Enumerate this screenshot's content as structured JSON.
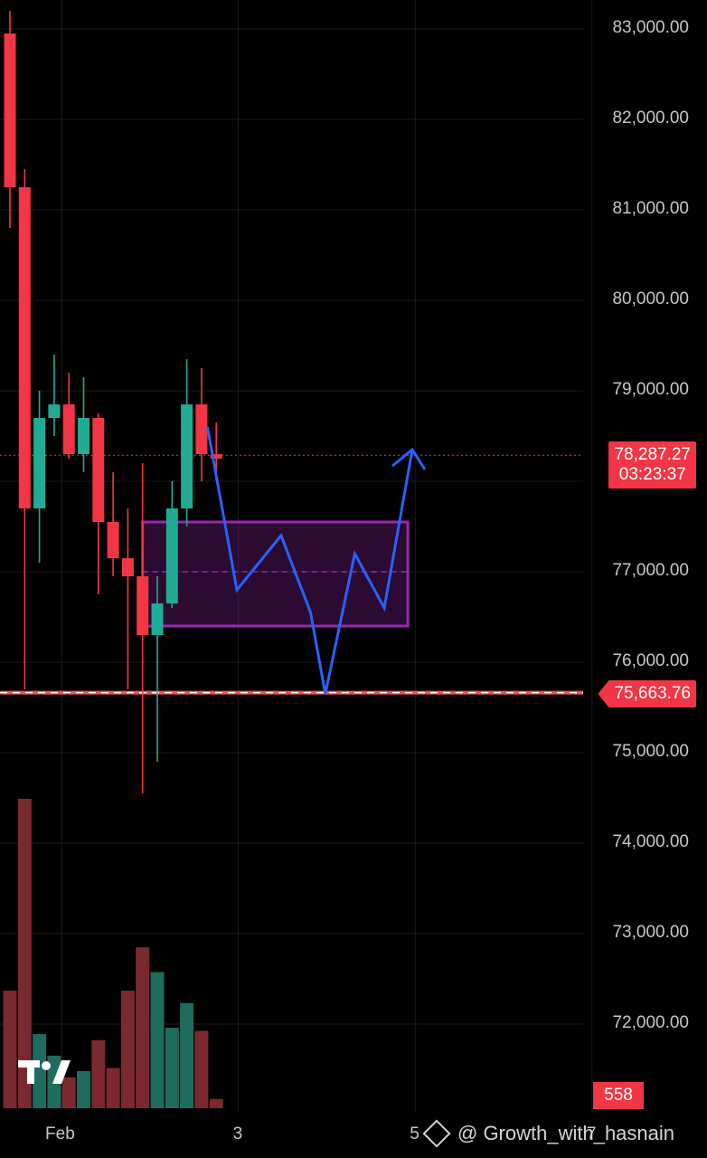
{
  "chart_data": {
    "type": "candlestick",
    "symbol_hidden": true,
    "y_axis": {
      "ticks": [
        "83,000.00",
        "82,000.00",
        "81,000.00",
        "80,000.00",
        "79,000.00",
        "77,000.00",
        "76,000.00",
        "75,000.00",
        "74,000.00",
        "73,000.00",
        "72,000.00"
      ],
      "tick_values": [
        83000,
        82000,
        81000,
        80000,
        79000,
        77000,
        76000,
        75000,
        74000,
        73000,
        72000
      ],
      "range": [
        71000,
        83300
      ]
    },
    "x_axis": {
      "labels": [
        "Feb",
        "3",
        "5",
        "7"
      ],
      "label_slots": [
        3.5,
        15.5,
        27.5,
        39.5
      ]
    },
    "candles": [
      {
        "o": 82950,
        "h": 83200,
        "l": 80800,
        "c": 81250
      },
      {
        "o": 81250,
        "h": 81450,
        "l": 75700,
        "c": 77700
      },
      {
        "o": 77700,
        "h": 79000,
        "l": 77100,
        "c": 78700
      },
      {
        "o": 78700,
        "h": 79400,
        "l": 78500,
        "c": 78850
      },
      {
        "o": 78850,
        "h": 79200,
        "l": 78250,
        "c": 78300
      },
      {
        "o": 78300,
        "h": 79150,
        "l": 78100,
        "c": 78700
      },
      {
        "o": 78700,
        "h": 78750,
        "l": 76750,
        "c": 77550
      },
      {
        "o": 77550,
        "h": 78100,
        "l": 76950,
        "c": 77150
      },
      {
        "o": 77150,
        "h": 77700,
        "l": 75700,
        "c": 76950
      },
      {
        "o": 76950,
        "h": 78200,
        "l": 74550,
        "c": 76300
      },
      {
        "o": 76300,
        "h": 76950,
        "l": 74900,
        "c": 76650
      },
      {
        "o": 76650,
        "h": 78000,
        "l": 76600,
        "c": 77700
      },
      {
        "o": 77700,
        "h": 79350,
        "l": 77500,
        "c": 78850
      },
      {
        "o": 78850,
        "h": 79250,
        "l": 78000,
        "c": 78300
      },
      {
        "o": 78300,
        "h": 78650,
        "l": 78100,
        "c": 78250
      }
    ],
    "volume": [
      {
        "v": 0.38,
        "up": false
      },
      {
        "v": 1.0,
        "up": false
      },
      {
        "v": 0.24,
        "up": true
      },
      {
        "v": 0.17,
        "up": true
      },
      {
        "v": 0.1,
        "up": false
      },
      {
        "v": 0.12,
        "up": true
      },
      {
        "v": 0.22,
        "up": false
      },
      {
        "v": 0.13,
        "up": false
      },
      {
        "v": 0.38,
        "up": false
      },
      {
        "v": 0.52,
        "up": false
      },
      {
        "v": 0.44,
        "up": true
      },
      {
        "v": 0.26,
        "up": true
      },
      {
        "v": 0.34,
        "up": true
      },
      {
        "v": 0.25,
        "up": false
      },
      {
        "v": 0.03,
        "up": false
      }
    ],
    "current_price": 78287.27,
    "support_level": 75663.76,
    "zone": {
      "from_slot": 9,
      "to_slot": 27,
      "top": 77550,
      "bottom": 76400,
      "mid": 77000
    },
    "projection_path": [
      {
        "slot": 13.4,
        "y": 78600
      },
      {
        "slot": 15.4,
        "y": 76800
      },
      {
        "slot": 18.4,
        "y": 77400
      },
      {
        "slot": 20.4,
        "y": 76550
      },
      {
        "slot": 21.4,
        "y": 75650
      },
      {
        "slot": 23.4,
        "y": 77200
      },
      {
        "slot": 25.4,
        "y": 76600
      },
      {
        "slot": 27.3,
        "y": 78350
      }
    ],
    "colors": {
      "up": "#22ab94",
      "down": "#f23645",
      "up_volume": "#1f6b5e",
      "down_volume": "#7a2a2e",
      "zone": "#9c27b0",
      "path": "#2962ff",
      "grid": "#1a1a1a"
    }
  },
  "labels": {
    "current_price": "78,287.27",
    "countdown": "03:23:37",
    "support_price": "75,663.76",
    "volume_value": "558",
    "watermark": "@ Growth_with_hasnain"
  }
}
